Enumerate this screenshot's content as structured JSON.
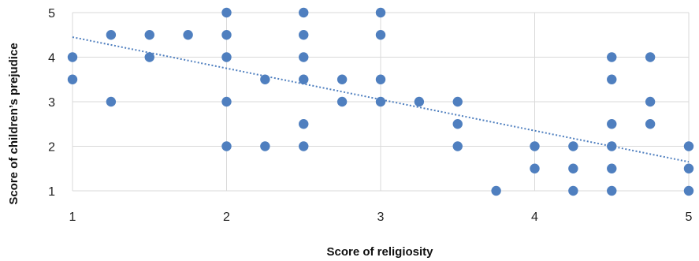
{
  "chart_data": {
    "type": "scatter",
    "title": "",
    "xlabel": "Score of religiosity",
    "ylabel": "Score of children’s prejudice",
    "xlim": [
      1,
      5
    ],
    "ylim": [
      1,
      5
    ],
    "x_ticks": [
      1,
      2,
      3,
      4,
      5
    ],
    "y_ticks": [
      1,
      2,
      3,
      4,
      5
    ],
    "grid": true,
    "legend": "none",
    "marker_color": "#4f7fbf",
    "trendline": {
      "type": "linear",
      "style": "dotted",
      "color": "#4f7fbf",
      "x": [
        1,
        5
      ],
      "y": [
        4.45,
        1.65
      ]
    },
    "points": [
      {
        "x": 1,
        "y": 4
      },
      {
        "x": 1,
        "y": 3.5
      },
      {
        "x": 1.25,
        "y": 4.5
      },
      {
        "x": 1.25,
        "y": 3
      },
      {
        "x": 1.5,
        "y": 4.5
      },
      {
        "x": 1.5,
        "y": 4
      },
      {
        "x": 1.75,
        "y": 4.5
      },
      {
        "x": 2,
        "y": 5
      },
      {
        "x": 2,
        "y": 4.5
      },
      {
        "x": 2,
        "y": 4
      },
      {
        "x": 2,
        "y": 3
      },
      {
        "x": 2,
        "y": 2
      },
      {
        "x": 2.25,
        "y": 3.5
      },
      {
        "x": 2.25,
        "y": 2
      },
      {
        "x": 2.5,
        "y": 5
      },
      {
        "x": 2.5,
        "y": 4.5
      },
      {
        "x": 2.5,
        "y": 4
      },
      {
        "x": 2.5,
        "y": 3.5
      },
      {
        "x": 2.5,
        "y": 2.5
      },
      {
        "x": 2.5,
        "y": 2
      },
      {
        "x": 2.75,
        "y": 3.5
      },
      {
        "x": 2.75,
        "y": 3
      },
      {
        "x": 3,
        "y": 5
      },
      {
        "x": 3,
        "y": 4.5
      },
      {
        "x": 3,
        "y": 3.5
      },
      {
        "x": 3,
        "y": 3
      },
      {
        "x": 3.25,
        "y": 3
      },
      {
        "x": 3.5,
        "y": 3
      },
      {
        "x": 3.5,
        "y": 2.5
      },
      {
        "x": 3.5,
        "y": 2
      },
      {
        "x": 3.75,
        "y": 1
      },
      {
        "x": 4,
        "y": 2
      },
      {
        "x": 4,
        "y": 1.5
      },
      {
        "x": 4.25,
        "y": 2
      },
      {
        "x": 4.25,
        "y": 1.5
      },
      {
        "x": 4.25,
        "y": 1
      },
      {
        "x": 4.5,
        "y": 4
      },
      {
        "x": 4.5,
        "y": 3.5
      },
      {
        "x": 4.5,
        "y": 2.5
      },
      {
        "x": 4.5,
        "y": 2
      },
      {
        "x": 4.5,
        "y": 1.5
      },
      {
        "x": 4.5,
        "y": 1
      },
      {
        "x": 4.75,
        "y": 4
      },
      {
        "x": 4.75,
        "y": 3
      },
      {
        "x": 4.75,
        "y": 2.5
      },
      {
        "x": 5,
        "y": 2
      },
      {
        "x": 5,
        "y": 1.5
      },
      {
        "x": 5,
        "y": 1
      }
    ]
  }
}
